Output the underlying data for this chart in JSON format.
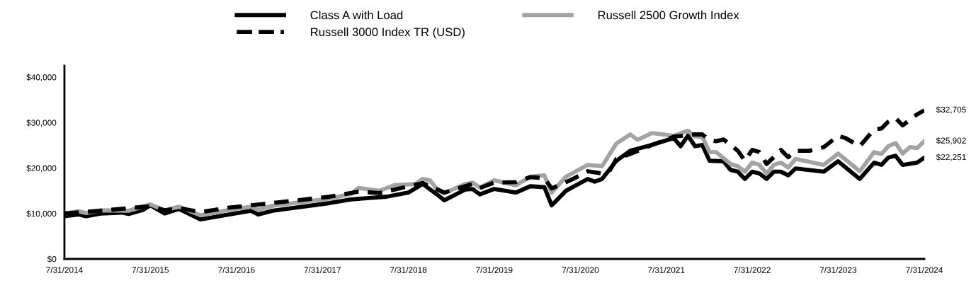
{
  "chart_data": {
    "type": "line",
    "legend": "top",
    "grid": false,
    "line_style": "solid",
    "xlim": [
      "2014-07-31",
      "2024-07-31"
    ],
    "xticks": [
      {
        "value": "2014-07-31",
        "label": "7/31/2014"
      },
      {
        "value": "2015-07-31",
        "label": "7/31/2015"
      },
      {
        "value": "2016-07-31",
        "label": "7/31/2016"
      },
      {
        "value": "2017-07-31",
        "label": "7/31/2017"
      },
      {
        "value": "2018-07-31",
        "label": "7/31/2018"
      },
      {
        "value": "2019-07-31",
        "label": "7/31/2019"
      },
      {
        "value": "2020-07-31",
        "label": "7/31/2020"
      },
      {
        "value": "2021-07-31",
        "label": "7/31/2021"
      },
      {
        "value": "2022-07-31",
        "label": "7/31/2022"
      },
      {
        "value": "2023-07-31",
        "label": "7/31/2023"
      },
      {
        "value": "2024-07-31",
        "label": "7/31/2024"
      }
    ],
    "ylim": [
      0,
      42500
    ],
    "yticks": [
      {
        "value": 0,
        "label": "$0"
      },
      {
        "value": 10000,
        "label": "$10,000"
      },
      {
        "value": 20000,
        "label": "$20,000"
      },
      {
        "value": 30000,
        "label": "$30,000"
      },
      {
        "value": 40000,
        "label": "$40,000"
      }
    ],
    "series": [
      {
        "name": "Class A with Load",
        "color": "#000000",
        "x": [
          "2014-07-31",
          "2014-09-30",
          "2014-10-31",
          "2014-12-31",
          "2015-03-31",
          "2015-04-30",
          "2015-06-30",
          "2015-07-31",
          "2015-09-30",
          "2015-11-30",
          "2016-02-29",
          "2016-06-30",
          "2016-09-30",
          "2016-10-31",
          "2016-12-31",
          "2017-08-31",
          "2017-11-30",
          "2018-04-30",
          "2018-07-31",
          "2018-09-30",
          "2018-11-30",
          "2018-12-31",
          "2019-03-31",
          "2019-04-30",
          "2019-05-31",
          "2019-07-31",
          "2019-10-31",
          "2019-12-31",
          "2020-02-29",
          "2020-03-31",
          "2020-05-31",
          "2020-08-31",
          "2020-09-30",
          "2020-10-31",
          "2020-12-31",
          "2021-02-28",
          "2021-05-31",
          "2021-08-31",
          "2021-09-30",
          "2021-10-31",
          "2021-11-30",
          "2021-12-31",
          "2022-01-31",
          "2022-03-31",
          "2022-04-30",
          "2022-05-31",
          "2022-06-30",
          "2022-07-31",
          "2022-08-31",
          "2022-09-30",
          "2022-10-31",
          "2022-11-30",
          "2022-12-31",
          "2023-01-31",
          "2023-05-31",
          "2023-07-31",
          "2023-10-31",
          "2023-12-31",
          "2024-01-31",
          "2024-02-29",
          "2024-03-31",
          "2024-04-30",
          "2024-06-30",
          "2024-07-31"
        ],
        "values": [
          9400,
          9800,
          9400,
          10000,
          10200,
          9900,
          10800,
          11800,
          10000,
          11000,
          8700,
          9800,
          10600,
          9800,
          10600,
          12300,
          13100,
          13700,
          14600,
          16500,
          14200,
          12900,
          15300,
          15400,
          14200,
          15400,
          14600,
          16000,
          15800,
          11800,
          15000,
          17600,
          17000,
          17600,
          21600,
          23800,
          25100,
          26600,
          24800,
          27100,
          24800,
          25100,
          21600,
          21500,
          19600,
          19200,
          17600,
          19200,
          18800,
          17600,
          19200,
          19200,
          18400,
          19900,
          19200,
          21500,
          17600,
          21200,
          20700,
          22300,
          22700,
          20700,
          21200,
          22251
        ]
      },
      {
        "name": "Russell 2500 Growth Index",
        "color": "#a0a4a4",
        "x": [
          "2014-07-31",
          "2014-09-30",
          "2014-10-31",
          "2014-12-31",
          "2015-04-30",
          "2015-07-31",
          "2015-09-30",
          "2015-11-30",
          "2016-02-29",
          "2016-06-30",
          "2016-09-30",
          "2016-10-31",
          "2016-12-31",
          "2017-08-31",
          "2017-11-30",
          "2017-12-31",
          "2018-03-31",
          "2018-05-31",
          "2018-08-31",
          "2018-09-30",
          "2018-10-31",
          "2018-11-30",
          "2018-12-31",
          "2019-03-31",
          "2019-04-30",
          "2019-05-31",
          "2019-07-31",
          "2019-10-31",
          "2019-12-31",
          "2020-02-29",
          "2020-03-31",
          "2020-05-31",
          "2020-08-31",
          "2020-10-31",
          "2020-12-31",
          "2021-02-28",
          "2021-03-31",
          "2021-05-31",
          "2021-08-31",
          "2021-10-31",
          "2021-11-30",
          "2021-12-31",
          "2022-01-31",
          "2022-02-28",
          "2022-04-30",
          "2022-05-31",
          "2022-06-30",
          "2022-07-31",
          "2022-08-31",
          "2022-09-30",
          "2022-10-31",
          "2022-11-30",
          "2022-12-31",
          "2023-01-31",
          "2023-05-31",
          "2023-07-31",
          "2023-10-31",
          "2023-12-31",
          "2024-01-31",
          "2024-02-29",
          "2024-03-31",
          "2024-04-30",
          "2024-05-31",
          "2024-06-30",
          "2024-07-31"
        ],
        "values": [
          10000,
          10500,
          10100,
          10700,
          10600,
          12000,
          10700,
          11500,
          9600,
          10800,
          11500,
          10800,
          11700,
          13300,
          14300,
          15600,
          15000,
          16200,
          16500,
          17600,
          17300,
          15400,
          14500,
          16500,
          16800,
          15700,
          17300,
          16200,
          18100,
          18400,
          14600,
          18100,
          20700,
          20400,
          25400,
          27400,
          26200,
          27700,
          27100,
          28200,
          26900,
          26900,
          23500,
          23500,
          20900,
          20400,
          19200,
          21200,
          20700,
          18800,
          20700,
          21200,
          20100,
          22000,
          20700,
          23200,
          19300,
          23500,
          23100,
          24800,
          25500,
          23200,
          24600,
          24400,
          25902
        ]
      },
      {
        "name": "Russell 3000 Index TR (USD)",
        "color": "#000000",
        "line_style": "dashed",
        "x": [
          "2014-07-31",
          "2014-12-31",
          "2015-07-31",
          "2015-09-30",
          "2015-11-30",
          "2016-02-29",
          "2016-06-30",
          "2016-12-31",
          "2017-08-31",
          "2017-12-31",
          "2018-03-31",
          "2018-09-30",
          "2018-12-31",
          "2019-04-30",
          "2019-05-31",
          "2019-07-31",
          "2019-10-31",
          "2019-12-31",
          "2020-02-29",
          "2020-03-31",
          "2020-06-30",
          "2020-08-31",
          "2020-10-31",
          "2020-11-30",
          "2020-12-31",
          "2021-02-28",
          "2021-05-31",
          "2021-07-31",
          "2021-08-31",
          "2021-11-30",
          "2021-12-31",
          "2022-01-31",
          "2022-02-28",
          "2022-03-31",
          "2022-05-31",
          "2022-06-30",
          "2022-07-31",
          "2022-08-31",
          "2022-09-30",
          "2022-10-31",
          "2022-11-30",
          "2022-12-31",
          "2023-01-31",
          "2023-03-31",
          "2023-05-31",
          "2023-07-31",
          "2023-08-31",
          "2023-10-31",
          "2023-12-31",
          "2024-01-31",
          "2024-02-29",
          "2024-03-31",
          "2024-04-30",
          "2024-06-30",
          "2024-07-31"
        ],
        "values": [
          10000,
          10600,
          11600,
          10700,
          11200,
          10300,
          11300,
          12300,
          13700,
          14800,
          14500,
          16700,
          14600,
          16500,
          15600,
          16800,
          16900,
          18000,
          17800,
          15500,
          17600,
          19300,
          18800,
          19200,
          22000,
          23100,
          25100,
          26200,
          26900,
          27400,
          27400,
          26200,
          25900,
          26300,
          23800,
          21600,
          24000,
          23500,
          20900,
          22400,
          24000,
          22400,
          23800,
          23800,
          24600,
          27100,
          26600,
          24800,
          28500,
          28700,
          30200,
          31000,
          29400,
          31800,
          32705
        ]
      }
    ],
    "annotations": [
      {
        "text": "$32,705",
        "x": "2024-07-31",
        "y": 32705
      },
      {
        "text": "$25,902",
        "x": "2024-07-31",
        "y": 25902
      },
      {
        "text": "$22,251",
        "x": "2024-07-31",
        "y": 22251
      }
    ]
  }
}
